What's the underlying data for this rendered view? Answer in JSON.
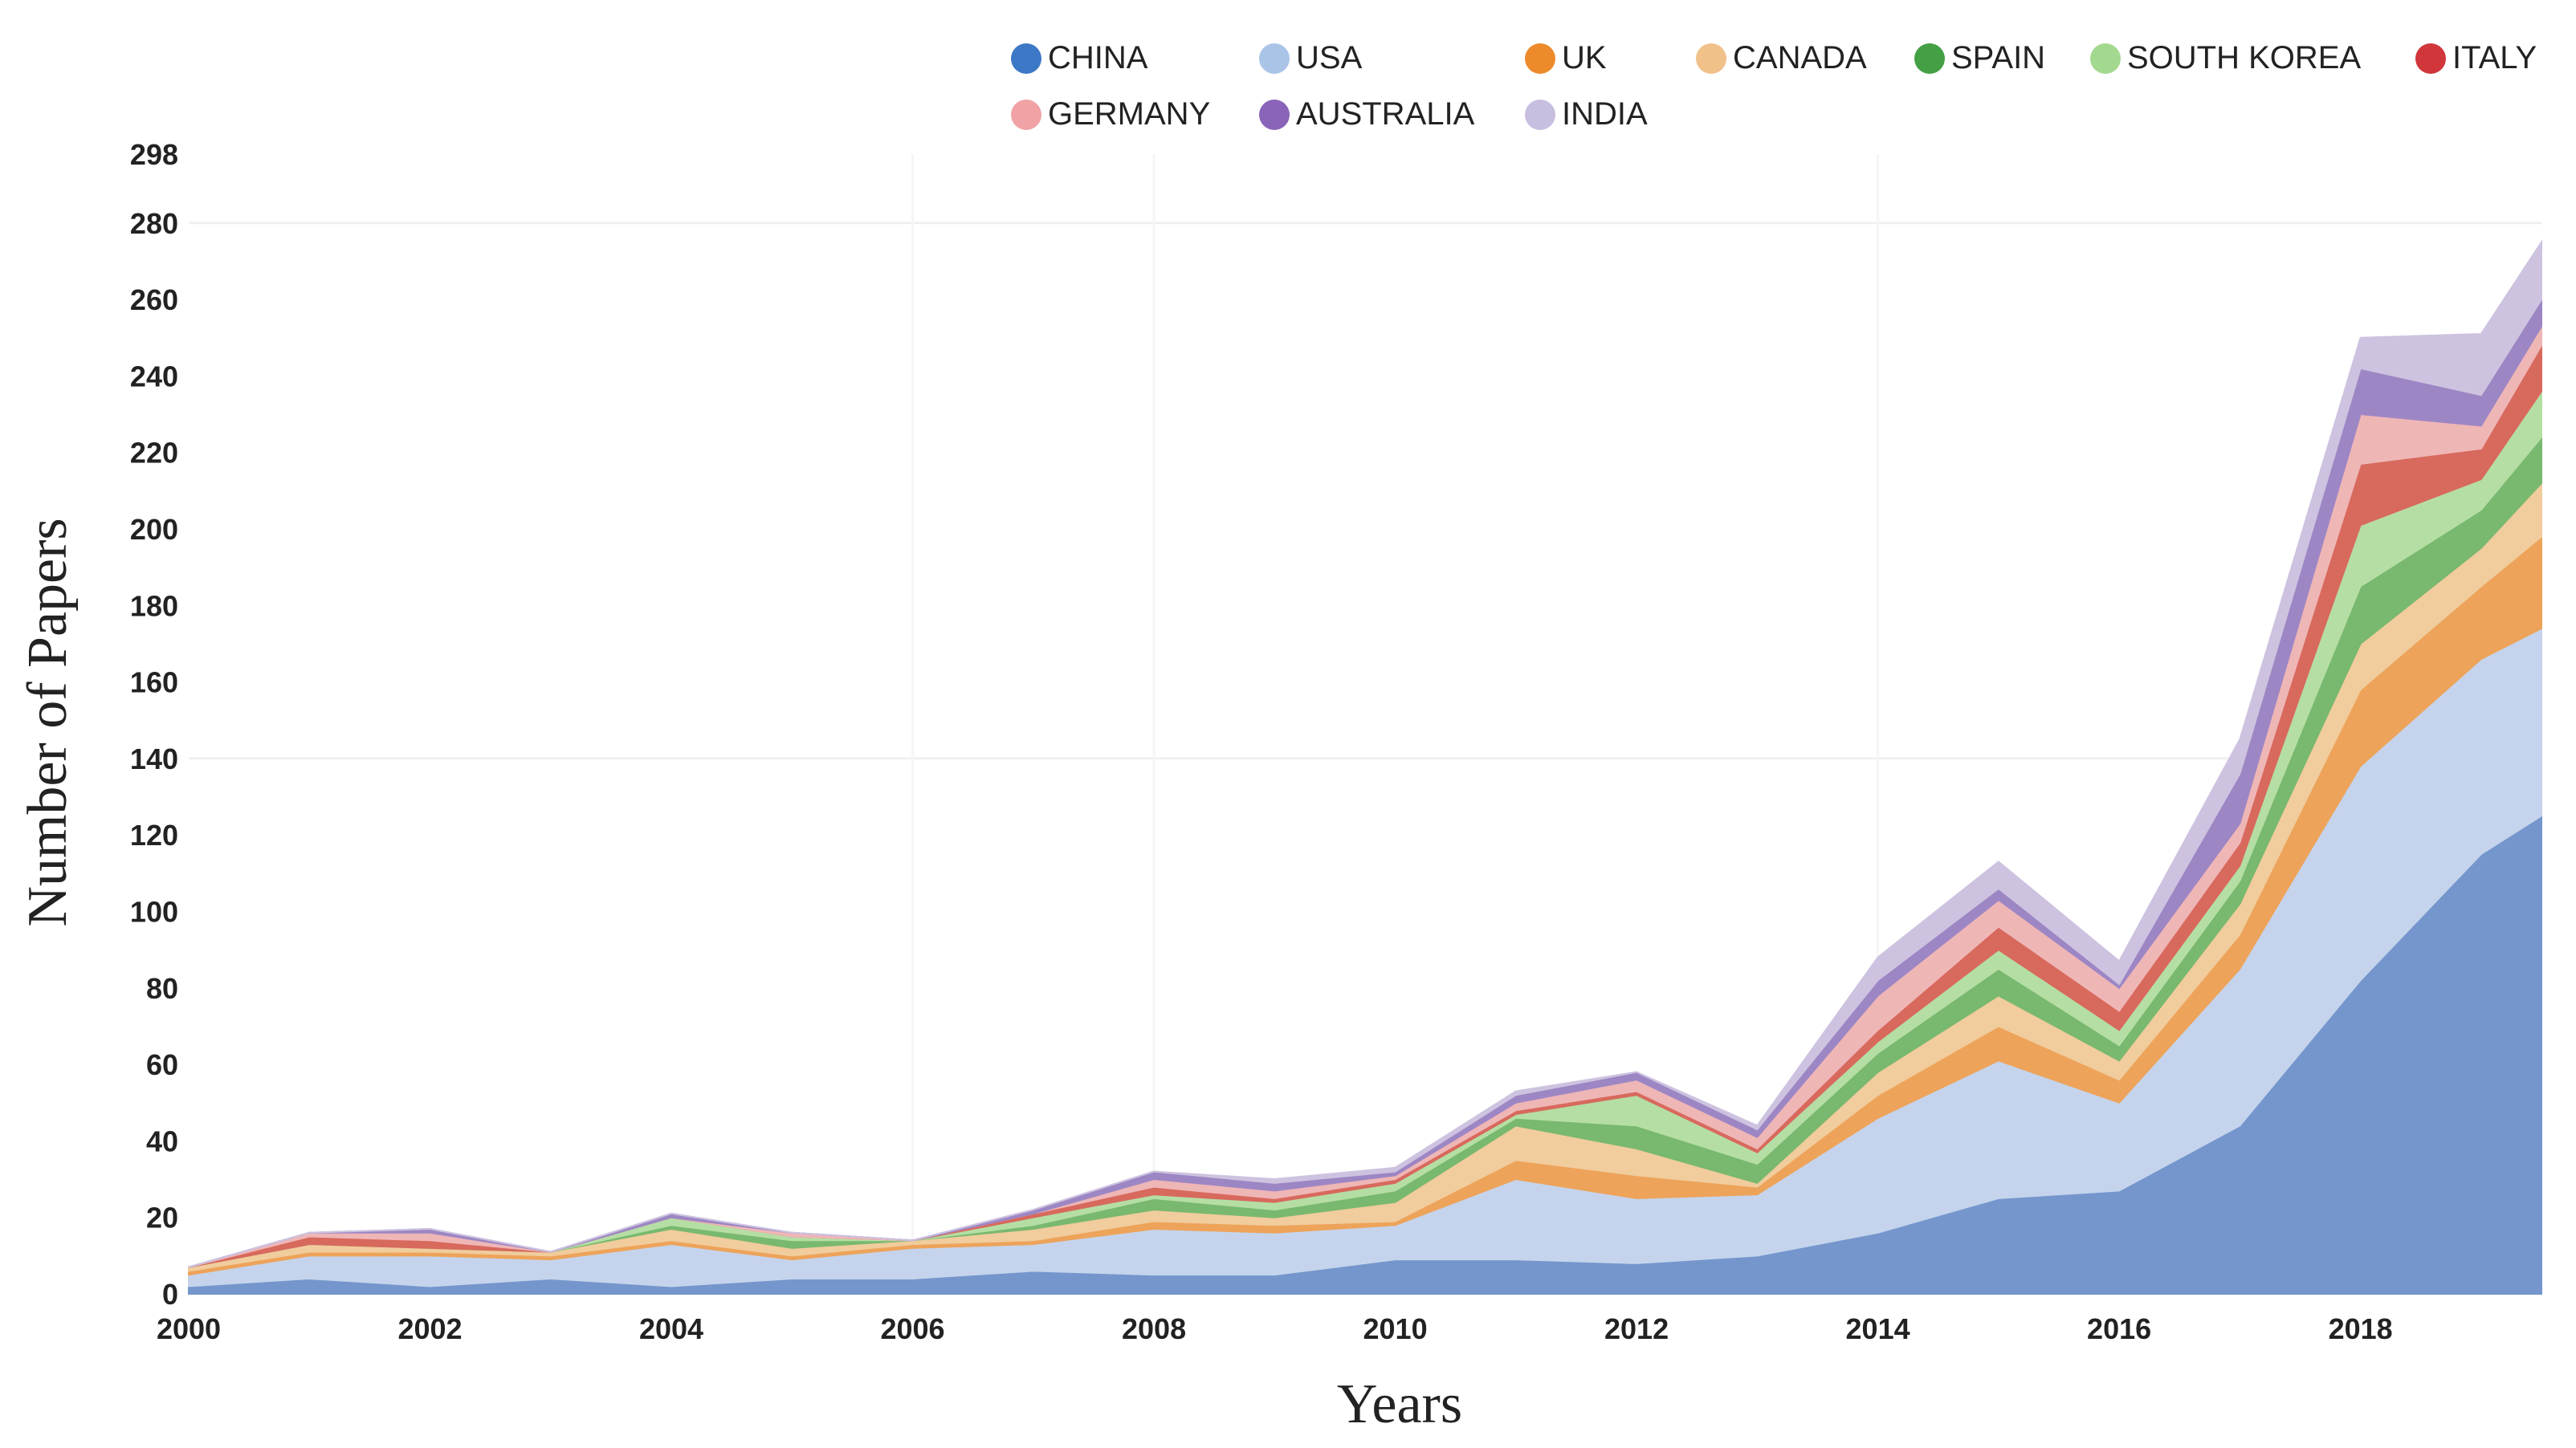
{
  "chart_data": {
    "type": "area",
    "stacked": true,
    "title": "",
    "xlabel": "Years",
    "ylabel": "Number of Papers",
    "xlim": [
      2000,
      2019.5
    ],
    "ylim": [
      0,
      298
    ],
    "x": [
      2000,
      2001,
      2002,
      2003,
      2004,
      2005,
      2006,
      2007,
      2008,
      2009,
      2010,
      2011,
      2012,
      2013,
      2014,
      2015,
      2016,
      2017,
      2018,
      2019,
      2019.5
    ],
    "x_ticks": [
      "2000",
      "2002",
      "2004",
      "2006",
      "2008",
      "2010",
      "2012",
      "2014",
      "2016",
      "2018"
    ],
    "y_ticks": [
      "0",
      "20",
      "40",
      "60",
      "80",
      "100",
      "120",
      "140",
      "160",
      "180",
      "200",
      "220",
      "240",
      "260",
      "280",
      "298"
    ],
    "legend_position": "top",
    "series": [
      {
        "name": "CHINA",
        "color": "#7496cc",
        "legend_color": "#3d78c6",
        "values": [
          2,
          4,
          2,
          4,
          2,
          4,
          4,
          6,
          5,
          5,
          9,
          9,
          8,
          10,
          16,
          25,
          27,
          44,
          82,
          115,
          125
        ]
      },
      {
        "name": "USA",
        "color": "#c5d4ec",
        "legend_color": "#aac4e8",
        "values": [
          3,
          6,
          8,
          5,
          11,
          5,
          8,
          7,
          12,
          11,
          9,
          21,
          17,
          16,
          30,
          36,
          23,
          41,
          56,
          51,
          49
        ]
      },
      {
        "name": "UK",
        "color": "#eda35a",
        "legend_color": "#ec8a2c",
        "values": [
          1,
          1,
          1,
          1,
          1,
          1,
          1,
          1,
          2,
          2,
          1,
          5,
          6,
          2,
          6,
          9,
          6,
          9,
          20,
          19,
          24
        ]
      },
      {
        "name": "CANADA",
        "color": "#f1cc9c",
        "legend_color": "#f1c18a",
        "values": [
          1,
          2,
          1,
          1,
          3,
          2,
          1,
          3,
          3,
          2,
          5,
          9,
          7,
          1,
          6,
          8,
          5,
          8,
          12,
          10,
          14
        ]
      },
      {
        "name": "SPAIN",
        "color": "#79b86f",
        "legend_color": "#43a045",
        "values": [
          0,
          0,
          0,
          0,
          1,
          2,
          0,
          1,
          3,
          2,
          3,
          2,
          6,
          5,
          5,
          7,
          4,
          6,
          15,
          10,
          12
        ]
      },
      {
        "name": "SOUTH KOREA",
        "color": "#b5dea4",
        "legend_color": "#a3d98f",
        "values": [
          0,
          0,
          0,
          0,
          2,
          1,
          0,
          2,
          1,
          2,
          2,
          1,
          8,
          3,
          3,
          5,
          4,
          4,
          16,
          8,
          12
        ]
      },
      {
        "name": "ITALY",
        "color": "#d8695d",
        "legend_color": "#d0363a",
        "values": [
          0,
          2,
          2,
          0,
          0,
          0,
          0,
          1,
          2,
          1,
          1,
          1,
          1,
          1,
          3,
          6,
          5,
          6,
          16,
          8,
          12
        ]
      },
      {
        "name": "GERMANY",
        "color": "#efb6b6",
        "legend_color": "#f0a2a4",
        "values": [
          0,
          1,
          2,
          0,
          0,
          1,
          0,
          0,
          2,
          2,
          1,
          2,
          3,
          3,
          9,
          7,
          6,
          5,
          13,
          6,
          5
        ]
      },
      {
        "name": "AUSTRALIA",
        "color": "#9d86c4",
        "legend_color": "#8a64b8",
        "values": [
          0,
          0,
          1,
          0,
          1,
          0,
          0,
          1,
          2,
          2,
          1,
          2,
          2,
          2,
          4,
          3,
          1,
          13,
          12,
          8,
          7
        ]
      },
      {
        "name": "INDIA",
        "color": "#cdc3e0",
        "legend_color": "#c8bee0",
        "values": [
          0,
          0,
          0,
          0,
          0,
          0,
          0,
          0,
          0,
          1,
          1,
          1,
          0,
          1,
          6,
          7,
          6,
          9,
          8,
          16,
          15
        ]
      }
    ]
  }
}
